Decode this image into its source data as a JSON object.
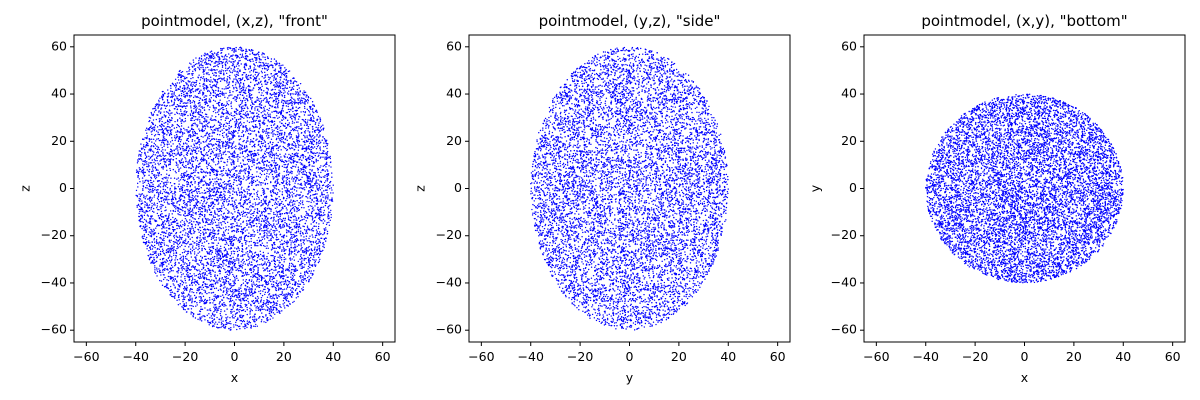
{
  "chart_data": [
    {
      "type": "scatter",
      "title": "pointmodel, (x,z), \"front\"",
      "xlabel": "x",
      "ylabel": "z",
      "xlim": [
        -65,
        65
      ],
      "ylim": [
        -65,
        65
      ],
      "xticks": [
        -60,
        -40,
        -20,
        0,
        20,
        40,
        60
      ],
      "yticks": [
        -60,
        -40,
        -20,
        0,
        20,
        40,
        60
      ],
      "xtick_labels": [
        "−60",
        "−40",
        "−20",
        "0",
        "20",
        "40",
        "60"
      ],
      "ytick_labels": [
        "−60",
        "−40",
        "−20",
        "0",
        "20",
        "40",
        "60"
      ],
      "point_color": "#0000ff",
      "point_cloud": {
        "shape": "filled ellipse",
        "center": [
          0,
          0
        ],
        "semi_axis_x": 40,
        "semi_axis_y": 60
      },
      "grid": false
    },
    {
      "type": "scatter",
      "title": "pointmodel, (y,z), \"side\"",
      "xlabel": "y",
      "ylabel": "z",
      "xlim": [
        -65,
        65
      ],
      "ylim": [
        -65,
        65
      ],
      "xticks": [
        -60,
        -40,
        -20,
        0,
        20,
        40,
        60
      ],
      "yticks": [
        -60,
        -40,
        -20,
        0,
        20,
        40,
        60
      ],
      "xtick_labels": [
        "−60",
        "−40",
        "−20",
        "0",
        "20",
        "40",
        "60"
      ],
      "ytick_labels": [
        "−60",
        "−40",
        "−20",
        "0",
        "20",
        "40",
        "60"
      ],
      "point_color": "#0000ff",
      "point_cloud": {
        "shape": "filled ellipse",
        "center": [
          0,
          0
        ],
        "semi_axis_x": 40,
        "semi_axis_y": 60
      },
      "grid": false
    },
    {
      "type": "scatter",
      "title": "pointmodel, (x,y), \"bottom\"",
      "xlabel": "x",
      "ylabel": "y",
      "xlim": [
        -65,
        65
      ],
      "ylim": [
        -65,
        65
      ],
      "xticks": [
        -60,
        -40,
        -20,
        0,
        20,
        40,
        60
      ],
      "yticks": [
        -60,
        -40,
        -20,
        0,
        20,
        40,
        60
      ],
      "xtick_labels": [
        "−60",
        "−40",
        "−20",
        "0",
        "20",
        "40",
        "60"
      ],
      "ytick_labels": [
        "−60",
        "−40",
        "−20",
        "0",
        "20",
        "40",
        "60"
      ],
      "point_color": "#0000ff",
      "point_cloud": {
        "shape": "filled circle",
        "center": [
          0,
          0
        ],
        "semi_axis_x": 40,
        "semi_axis_y": 40
      },
      "grid": false
    }
  ]
}
